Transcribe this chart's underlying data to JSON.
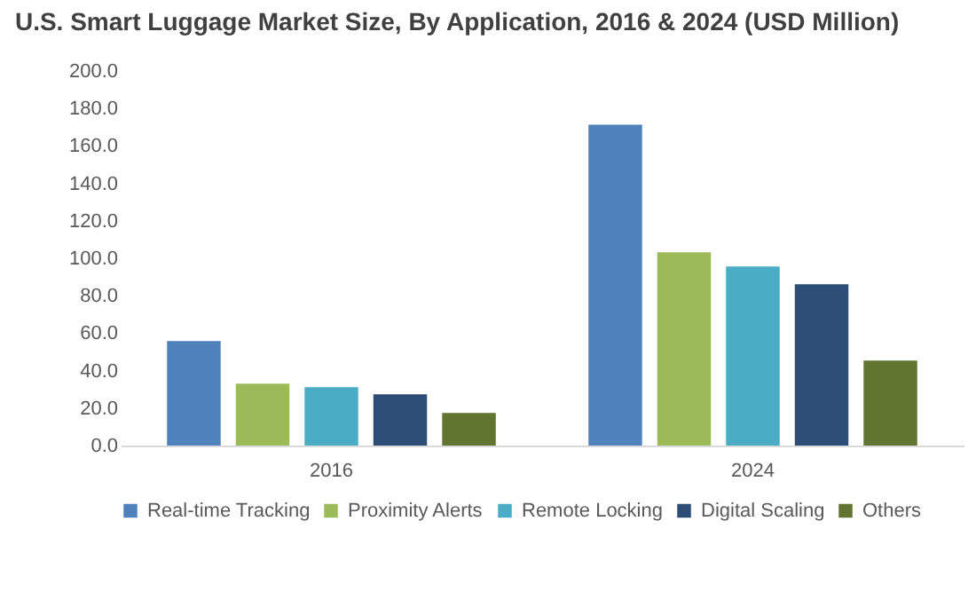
{
  "chart_data": {
    "type": "bar",
    "title": "U.S. Smart Luggage Market Size, By Application, 2016 & 2024 (USD Million)",
    "categories": [
      "2016",
      "2024"
    ],
    "series": [
      {
        "name": "Real-time Tracking",
        "color": "#4f81bd",
        "values": [
          55.8,
          171.3
        ]
      },
      {
        "name": "Proximity Alerts",
        "color": "#9bbb59",
        "values": [
          33.1,
          103.2
        ]
      },
      {
        "name": "Remote Locking",
        "color": "#4bacc6",
        "values": [
          31.2,
          95.6
        ]
      },
      {
        "name": "Digital Scaling",
        "color": "#2c4d75",
        "values": [
          27.4,
          86.1
        ]
      },
      {
        "name": "Others",
        "color": "#617430",
        "values": [
          17.4,
          45.4
        ]
      }
    ],
    "ylim": [
      0,
      200
    ],
    "yticks": [
      {
        "value": 0,
        "label": "0.0"
      },
      {
        "value": 20,
        "label": "20.0"
      },
      {
        "value": 40,
        "label": "40.0"
      },
      {
        "value": 60,
        "label": "60.0"
      },
      {
        "value": 80,
        "label": "80.0"
      },
      {
        "value": 100,
        "label": "100.0"
      },
      {
        "value": 120,
        "label": "120.0"
      },
      {
        "value": 140,
        "label": "140.0"
      },
      {
        "value": 160,
        "label": "160.0"
      },
      {
        "value": 180,
        "label": "180.0"
      },
      {
        "value": 200,
        "label": "200.0"
      }
    ],
    "legend": "bottom"
  }
}
